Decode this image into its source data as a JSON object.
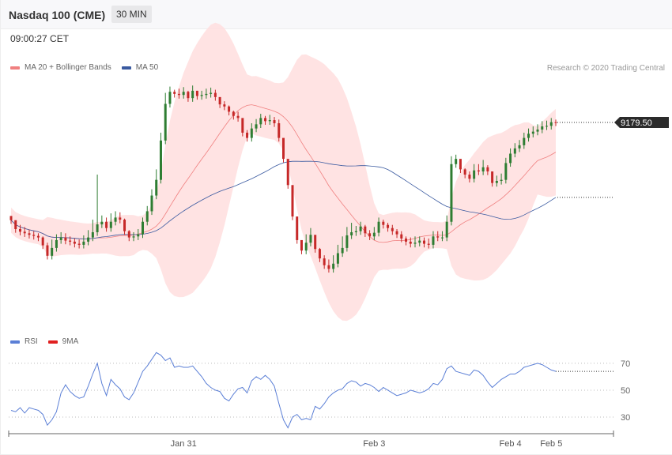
{
  "header": {
    "title": "Nasdaq 100 (CME)",
    "interval": "30 MIN"
  },
  "time_label": "09:00:27 CET",
  "copyright": "Research © 2020 Trading Central",
  "colors": {
    "up": "#2e7d32",
    "down": "#c62828",
    "ma20": "#f08080",
    "ma50": "#3a5aa0",
    "band": "#ffdede",
    "rsi": "#5b7fd6",
    "rsi_ma": "#e02020",
    "price_tag": "#2b2b2b"
  },
  "main_legend": [
    {
      "label": "MA 20 + Bollinger Bands",
      "color": "#f08080"
    },
    {
      "label": "MA 50",
      "color": "#3a5aa0"
    }
  ],
  "rsi_legend": [
    {
      "label": "RSI",
      "color": "#5b7fd6"
    },
    {
      "label": "9MA",
      "color": "#e02020"
    }
  ],
  "price_tag": "9179.50",
  "chart_data": [
    {
      "type": "candlestick",
      "title": "",
      "y_range": [
        8780,
        9270
      ],
      "last_price": 9179.5,
      "close": [
        8993,
        8976,
        8971,
        8968,
        8965,
        8963,
        8960,
        8945,
        8925,
        8940,
        8955,
        8960,
        8954,
        8952,
        8948,
        8946,
        8952,
        8960,
        8970,
        8985,
        8990,
        8978,
        8990,
        8998,
        8994,
        8972,
        8960,
        8962,
        8966,
        8990,
        9010,
        9040,
        9070,
        9145,
        9215,
        9238,
        9234,
        9232,
        9238,
        9226,
        9240,
        9230,
        9232,
        9234,
        9236,
        9228,
        9214,
        9210,
        9200,
        9192,
        9188,
        9160,
        9150,
        9168,
        9176,
        9188,
        9182,
        9184,
        9178,
        9150,
        9110,
        9060,
        9000,
        8955,
        8935,
        8950,
        8965,
        8938,
        8920,
        8907,
        8900,
        8910,
        8930,
        8940,
        8964,
        8970,
        8972,
        8981,
        8968,
        8962,
        8969,
        8990,
        8984,
        8978,
        8972,
        8966,
        8958,
        8952,
        8948,
        8950,
        8954,
        8948,
        8946,
        8962,
        8960,
        8960,
        8990,
        9100,
        9110,
        9090,
        9080,
        9072,
        9088,
        9086,
        9094,
        9086,
        9064,
        9068,
        9070,
        9102,
        9120,
        9130,
        9136,
        9150,
        9158,
        9162,
        9166,
        9172,
        9173,
        9180,
        9179.5
      ],
      "high": [
        9001,
        8990,
        8984,
        8980,
        8975,
        8972,
        8968,
        8962,
        8950,
        8956,
        8966,
        8970,
        8968,
        8962,
        8958,
        8956,
        8964,
        8974,
        8994,
        9080,
        9002,
        8998,
        9006,
        9010,
        9008,
        8996,
        8974,
        8970,
        8976,
        8998,
        9020,
        9052,
        9090,
        9160,
        9236,
        9248,
        9242,
        9244,
        9247,
        9240,
        9250,
        9240,
        9240,
        9244,
        9246,
        9242,
        9226,
        9220,
        9212,
        9202,
        9200,
        9178,
        9165,
        9178,
        9186,
        9196,
        9192,
        9194,
        9190,
        9185,
        9142,
        9082,
        9030,
        8975,
        8950,
        8966,
        8978,
        8960,
        8940,
        8926,
        8918,
        8926,
        8946,
        8962,
        8980,
        8988,
        8982,
        8990,
        8984,
        8974,
        8980,
        8998,
        8994,
        8988,
        8984,
        8976,
        8972,
        8962,
        8960,
        8962,
        8962,
        8960,
        8958,
        8972,
        8972,
        8972,
        9002,
        9115,
        9118,
        9104,
        9092,
        9086,
        9100,
        9100,
        9108,
        9098,
        9080,
        9078,
        9082,
        9112,
        9130,
        9140,
        9146,
        9160,
        9168,
        9172,
        9176,
        9182,
        9183,
        9188,
        9185
      ]
    },
    {
      "type": "line",
      "title": "RSI",
      "y_range": [
        20,
        77
      ],
      "yticks": [
        70,
        50,
        30
      ],
      "rsi": [
        35,
        34,
        37,
        33,
        37,
        36,
        35,
        32,
        24,
        28,
        34,
        48,
        54,
        49,
        46,
        44,
        45,
        53,
        62,
        70,
        55,
        46,
        58,
        54,
        51,
        45,
        43,
        48,
        56,
        64,
        68,
        73,
        78,
        76,
        72,
        74,
        67,
        68,
        67,
        67,
        68,
        64,
        60,
        55,
        52,
        50,
        49,
        44,
        42,
        47,
        51,
        52,
        48,
        57,
        60,
        58,
        61,
        58,
        53,
        40,
        28,
        22,
        30,
        32,
        28,
        29,
        28,
        38,
        36,
        40,
        45,
        48,
        50,
        51,
        55,
        57,
        56,
        53,
        55,
        54,
        52,
        49,
        52,
        50,
        48,
        46,
        47,
        48,
        50,
        49,
        48,
        49,
        51,
        55,
        54,
        58,
        66,
        68,
        64,
        63,
        62,
        61,
        65,
        64,
        61,
        56,
        52,
        55,
        58,
        60,
        62,
        62,
        64,
        67,
        68,
        69,
        70,
        69,
        67,
        65,
        64
      ],
      "rsi_ma": [
        null,
        null,
        null,
        null,
        null,
        null,
        null,
        null,
        null,
        null,
        null,
        null,
        null,
        null,
        null,
        null,
        null,
        null,
        null,
        null,
        null,
        null,
        null,
        null,
        null,
        null,
        null,
        null,
        null,
        null,
        null,
        null,
        null,
        null,
        null,
        null,
        null,
        null,
        null,
        null,
        null,
        null,
        null,
        null,
        null,
        null,
        null,
        null,
        null,
        null,
        null,
        null,
        null,
        null,
        null,
        null,
        null,
        null,
        null,
        null,
        null,
        null,
        null,
        null,
        null,
        null,
        null,
        null,
        null,
        null,
        null,
        null,
        null,
        null,
        null,
        null,
        null,
        null,
        null,
        null,
        null,
        null,
        null,
        null,
        null,
        null,
        null,
        null,
        null,
        null,
        null,
        null,
        null,
        null,
        null,
        null,
        null,
        null,
        null,
        null,
        null,
        null,
        null,
        null,
        null,
        null,
        null,
        null,
        null,
        null,
        null,
        null,
        null,
        null,
        null,
        null,
        null,
        null,
        null,
        null,
        null
      ]
    }
  ],
  "x_axis": {
    "labels": [
      {
        "text": "Jan 31",
        "index": 38
      },
      {
        "text": "Feb 3",
        "index": 80
      },
      {
        "text": "Feb 4",
        "index": 110
      },
      {
        "text": "Feb 5",
        "index": 119
      }
    ]
  }
}
